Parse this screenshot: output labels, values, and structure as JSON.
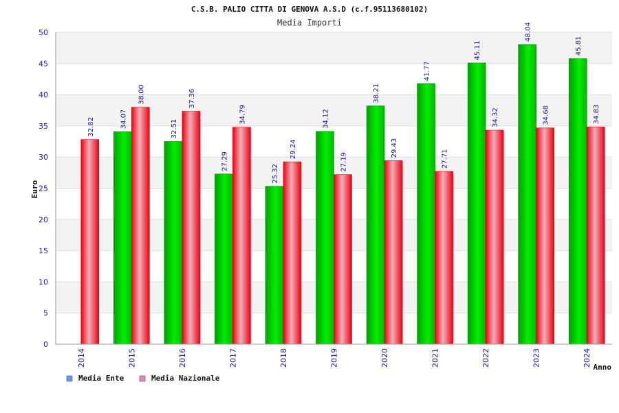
{
  "chart_data": {
    "type": "bar",
    "title": "C.S.B. PALIO CITTA DI GENOVA A.S.D (c.f.95113680102)",
    "subtitle": "Media Importi",
    "xlabel": "Anno",
    "ylabel": "Euro",
    "ylim": [
      0,
      50
    ],
    "yticks": [
      0,
      5,
      10,
      15,
      20,
      25,
      30,
      35,
      40,
      45,
      50
    ],
    "grid": true,
    "legend_position": "bottom-left",
    "categories": [
      "2014",
      "2015",
      "2016",
      "2017",
      "2018",
      "2019",
      "2020",
      "2021",
      "2022",
      "2023",
      "2024"
    ],
    "series": [
      {
        "name": "Media Ente",
        "color": "#00cc00",
        "legend_color": "#6699ee",
        "values": [
          null,
          34.07,
          32.51,
          27.29,
          25.32,
          34.12,
          38.21,
          41.77,
          45.11,
          48.04,
          45.81
        ],
        "labels": [
          "",
          "34.07",
          "32.51",
          "27.29",
          "25.32",
          "34.12",
          "38.21",
          "41.77",
          "45.11",
          "48.04",
          "45.81"
        ]
      },
      {
        "name": "Media Nazionale",
        "color": "#ee1122",
        "legend_color": "#dd88bb",
        "values": [
          32.82,
          38.0,
          37.36,
          34.79,
          29.24,
          27.19,
          29.43,
          27.71,
          34.32,
          34.68,
          34.83
        ],
        "labels": [
          "32.82",
          "38.00",
          "37.36",
          "34.79",
          "29.24",
          "27.19",
          "29.43",
          "27.71",
          "34.32",
          "34.68",
          "34.83"
        ]
      }
    ]
  }
}
